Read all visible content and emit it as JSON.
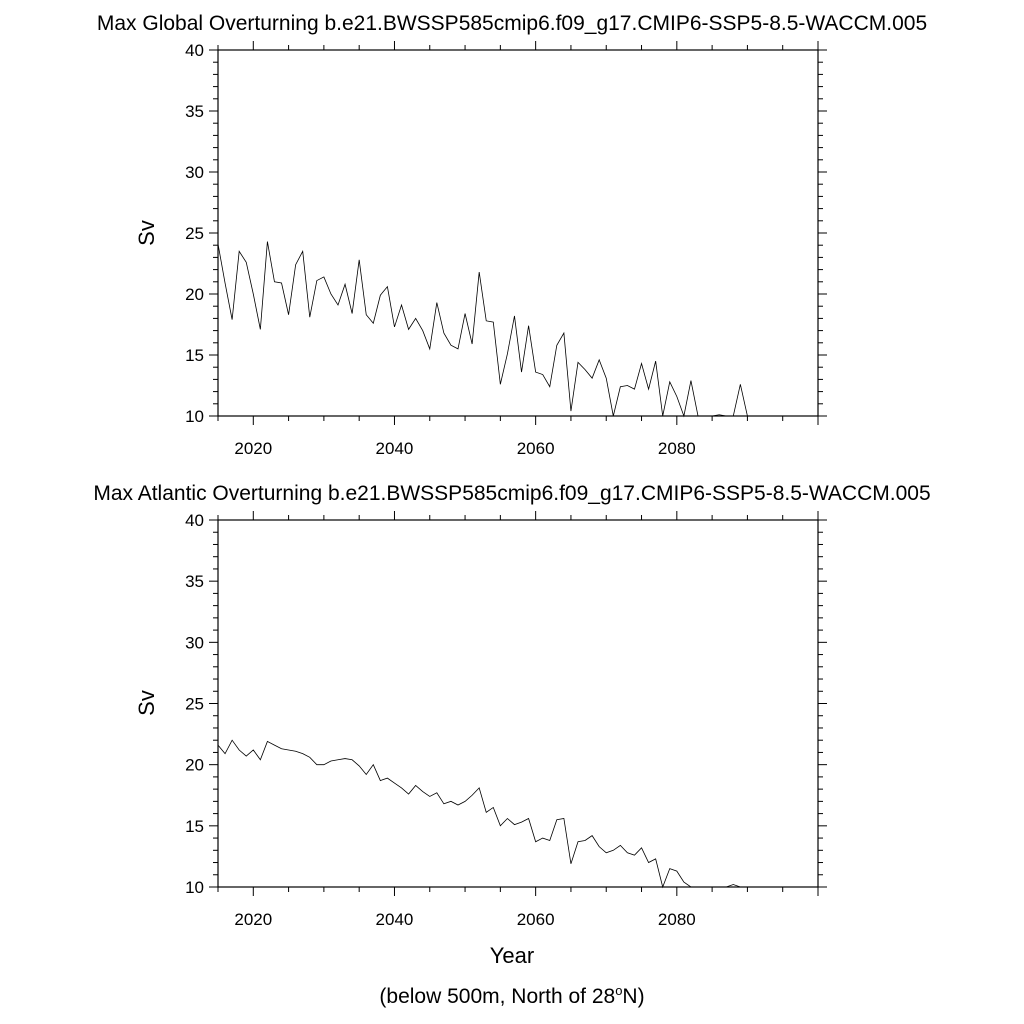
{
  "chart_data": [
    {
      "type": "line",
      "title": "Max Global Overturning b.e21.BWSSP585cmip6.f09_g17.CMIP6-SSP5-8.5-WACCM.005",
      "ylabel": "Sv",
      "xlabel": "",
      "xlim": [
        2015,
        2100
      ],
      "ylim": [
        10,
        40
      ],
      "xticks": [
        2020,
        2040,
        2060,
        2080
      ],
      "yticks": [
        10,
        15,
        20,
        25,
        30,
        35,
        40
      ],
      "grid": false,
      "series": [
        {
          "x": [
            2015,
            2016,
            2017,
            2018,
            2019,
            2020,
            2021,
            2022,
            2023,
            2024,
            2025,
            2026,
            2027,
            2028,
            2029,
            2030,
            2031,
            2032,
            2033,
            2034,
            2035,
            2036,
            2037,
            2038,
            2039,
            2040,
            2041,
            2042,
            2043,
            2044,
            2045,
            2046,
            2047,
            2048,
            2049,
            2050,
            2051,
            2052,
            2053,
            2054,
            2055,
            2056,
            2057,
            2058,
            2059,
            2060,
            2061,
            2062,
            2063,
            2064,
            2065,
            2066,
            2067,
            2068,
            2069,
            2070,
            2071,
            2072,
            2073,
            2074,
            2075,
            2076,
            2077,
            2078,
            2079,
            2080,
            2081,
            2082,
            2083,
            2084,
            2085,
            2086,
            2087,
            2088,
            2089,
            2090,
            2091,
            2092,
            2093,
            2094,
            2095,
            2096,
            2097,
            2098,
            2099
          ],
          "y": [
            24.1,
            20.9,
            17.9,
            23.5,
            22.6,
            20.0,
            17.1,
            24.3,
            21.0,
            20.9,
            18.3,
            22.4,
            23.5,
            18.1,
            21.1,
            21.4,
            20.0,
            19.1,
            20.8,
            18.4,
            22.8,
            18.3,
            17.6,
            19.9,
            20.6,
            17.3,
            19.1,
            17.1,
            18.0,
            17.0,
            15.5,
            19.3,
            16.8,
            15.8,
            15.5,
            18.4,
            15.9,
            21.8,
            17.8,
            17.7,
            12.6,
            15.1,
            18.2,
            13.6,
            17.4,
            13.6,
            13.4,
            12.4,
            15.8,
            16.8,
            10.4,
            14.4,
            13.8,
            13.1,
            14.6,
            13.1,
            9.9,
            12.4,
            12.5,
            12.2,
            14.3,
            12.2,
            14.5,
            9.3,
            12.8,
            11.6,
            9.2,
            12.9,
            8.6,
            9.1,
            9.5,
            10.1,
            9.3,
            9.1,
            12.6,
            9.7,
            9.6,
            9.5,
            9.5,
            9.5,
            9.5,
            9.5,
            9.5,
            9.5,
            9.5
          ]
        }
      ]
    },
    {
      "type": "line",
      "title": "Max Atlantic Overturning b.e21.BWSSP585cmip6.f09_g17.CMIP6-SSP5-8.5-WACCM.005",
      "ylabel": "Sv",
      "xlabel": "Year",
      "xlim": [
        2015,
        2100
      ],
      "ylim": [
        10,
        40
      ],
      "xticks": [
        2020,
        2040,
        2060,
        2080
      ],
      "yticks": [
        10,
        15,
        20,
        25,
        30,
        35,
        40
      ],
      "grid": false,
      "series": [
        {
          "x": [
            2015,
            2016,
            2017,
            2018,
            2019,
            2020,
            2021,
            2022,
            2023,
            2024,
            2025,
            2026,
            2027,
            2028,
            2029,
            2030,
            2031,
            2032,
            2033,
            2034,
            2035,
            2036,
            2037,
            2038,
            2039,
            2040,
            2041,
            2042,
            2043,
            2044,
            2045,
            2046,
            2047,
            2048,
            2049,
            2050,
            2051,
            2052,
            2053,
            2054,
            2055,
            2056,
            2057,
            2058,
            2059,
            2060,
            2061,
            2062,
            2063,
            2064,
            2065,
            2066,
            2067,
            2068,
            2069,
            2070,
            2071,
            2072,
            2073,
            2074,
            2075,
            2076,
            2077,
            2078,
            2079,
            2080,
            2081,
            2082,
            2083,
            2084,
            2085,
            2086,
            2087,
            2088,
            2089,
            2090,
            2091,
            2092,
            2093,
            2094,
            2095,
            2096,
            2097,
            2098,
            2099
          ],
          "y": [
            21.6,
            20.9,
            22.0,
            21.2,
            20.7,
            21.2,
            20.4,
            21.9,
            21.6,
            21.3,
            21.2,
            21.1,
            20.9,
            20.6,
            20.0,
            20.0,
            20.3,
            20.4,
            20.5,
            20.4,
            19.9,
            19.2,
            20.0,
            18.7,
            18.9,
            18.5,
            18.1,
            17.6,
            18.3,
            17.8,
            17.4,
            17.7,
            16.8,
            17.0,
            16.7,
            17.0,
            17.5,
            18.1,
            16.1,
            16.5,
            15.0,
            15.6,
            15.1,
            15.3,
            15.6,
            13.7,
            14.0,
            13.8,
            15.5,
            15.6,
            11.9,
            13.7,
            13.8,
            14.2,
            13.3,
            12.8,
            13.0,
            13.4,
            12.8,
            12.6,
            13.2,
            12.0,
            12.3,
            10.0,
            11.5,
            11.3,
            10.4,
            10.0,
            9.8,
            9.8,
            9.7,
            9.8,
            9.8,
            10.2,
            9.6,
            9.5,
            9.5,
            9.5,
            9.5,
            9.5,
            9.5,
            9.5,
            9.5,
            9.5,
            9.5
          ]
        }
      ]
    }
  ],
  "footnote": {
    "prefix": "(below 500m, North of 28",
    "sup": "o",
    "suffix": "N)"
  }
}
